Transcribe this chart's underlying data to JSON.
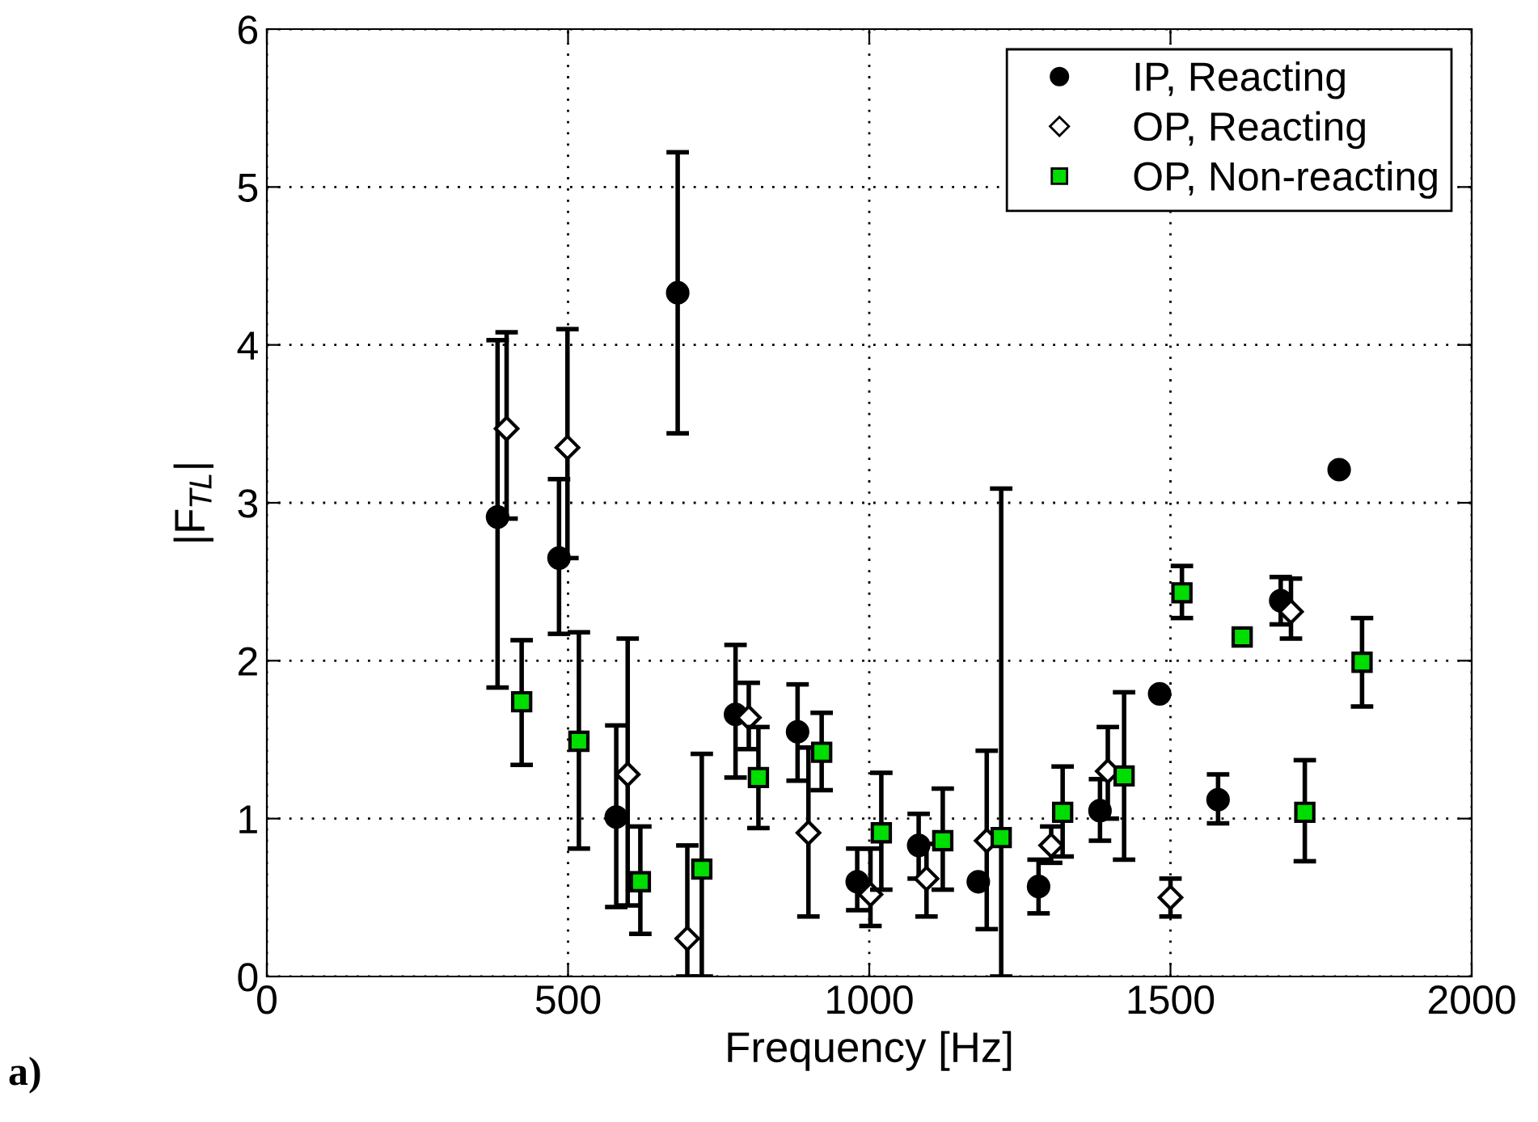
{
  "chart_data": {
    "type": "scatter",
    "xlabel": "Frequency [Hz]",
    "ylabel": "|F$_{TL}$|",
    "xlim": [
      0,
      2000
    ],
    "xticks": [
      0,
      500,
      1000,
      1500,
      2000
    ],
    "ylim": [
      0,
      6
    ],
    "yticks": [
      0,
      1,
      2,
      3,
      4,
      5,
      6
    ],
    "grid": true,
    "legend": "top right",
    "annotations": [
      "a)"
    ],
    "series": [
      {
        "name": "IP, Reacting",
        "color": "#000000",
        "marker": "circle",
        "x": [
          383,
          485,
          580,
          682,
          778,
          881,
          980,
          1082,
          1181,
          1281,
          1383,
          1482,
          1579,
          1683,
          1780
        ],
        "values": [
          2.91,
          2.65,
          1.01,
          4.33,
          1.66,
          1.55,
          0.6,
          0.83,
          0.6,
          0.57,
          1.05,
          1.79,
          1.12,
          2.38,
          3.21
        ],
        "errors": [
          [
            1.83,
            4.03
          ],
          [
            2.17,
            3.15
          ],
          [
            0.44,
            1.59
          ],
          [
            3.44,
            5.22
          ],
          [
            1.26,
            2.1
          ],
          [
            1.24,
            1.85
          ],
          [
            0.42,
            0.81
          ],
          [
            0.62,
            1.03
          ],
          null,
          [
            0.4,
            0.74
          ],
          [
            0.86,
            1.25
          ],
          null,
          [
            0.97,
            1.28
          ],
          [
            2.23,
            2.53
          ],
          null
        ]
      },
      {
        "name": "OP, Reacting",
        "color": "#ffffff",
        "marker": "diamond",
        "x": [
          398,
          499,
          599,
          698,
          800,
          899,
          1002,
          1095,
          1195,
          1302,
          1396,
          1500,
          1700
        ],
        "values": [
          3.47,
          3.35,
          1.28,
          0.24,
          1.64,
          0.91,
          0.52,
          0.62,
          0.86,
          0.83,
          1.3,
          0.5,
          2.31
        ],
        "errors": [
          [
            2.9,
            4.08
          ],
          [
            2.65,
            4.1
          ],
          [
            0.45,
            2.14
          ],
          [
            0,
            0.83
          ],
          [
            1.44,
            1.86
          ],
          [
            0.38,
            1.45
          ],
          [
            0.32,
            0.81
          ],
          [
            0.38,
            0.84
          ],
          [
            0.3,
            1.43
          ],
          [
            0.72,
            0.95
          ],
          [
            1.0,
            1.58
          ],
          [
            0.38,
            0.62
          ],
          [
            2.14,
            2.52
          ]
        ]
      },
      {
        "name": "OP, Non-reacting",
        "color": "#00dd00",
        "marker": "square",
        "x": [
          423,
          518,
          620,
          722,
          816,
          921,
          1020,
          1122,
          1219,
          1321,
          1423,
          1519,
          1619,
          1723,
          1818
        ],
        "values": [
          1.74,
          1.49,
          0.6,
          0.68,
          1.26,
          1.42,
          0.91,
          0.86,
          0.88,
          1.04,
          1.27,
          2.43,
          2.15,
          1.04,
          1.99
        ],
        "errors": [
          [
            1.34,
            2.13
          ],
          [
            0.81,
            2.18
          ],
          [
            0.27,
            0.95
          ],
          [
            0,
            1.41
          ],
          [
            0.94,
            1.58
          ],
          [
            1.18,
            1.67
          ],
          [
            0.55,
            1.29
          ],
          [
            0.55,
            1.19
          ],
          [
            0,
            3.09
          ],
          [
            0.76,
            1.33
          ],
          [
            0.74,
            1.8
          ],
          [
            2.27,
            2.6
          ],
          null,
          [
            0.73,
            1.37
          ],
          [
            1.71,
            2.27
          ]
        ]
      }
    ]
  }
}
